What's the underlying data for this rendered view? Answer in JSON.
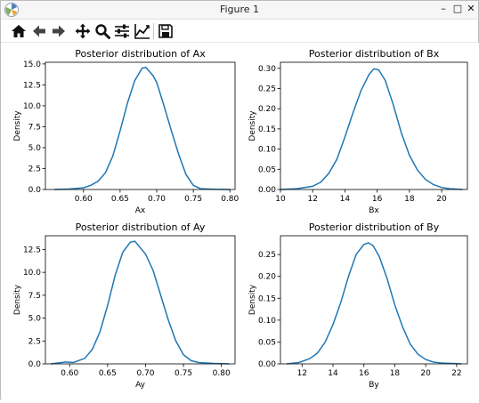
{
  "window": {
    "title": "Figure 1",
    "controls": {
      "minimize": "–",
      "maximize": "□",
      "close": "✕"
    }
  },
  "toolbar": {
    "buttons": [
      {
        "name": "home",
        "icon": "home-icon"
      },
      {
        "name": "back",
        "icon": "arrow-left-icon"
      },
      {
        "name": "forward",
        "icon": "arrow-right-icon"
      },
      {
        "name": "pan",
        "icon": "move-icon"
      },
      {
        "name": "zoom",
        "icon": "magnifier-icon"
      },
      {
        "name": "subplots",
        "icon": "sliders-icon"
      },
      {
        "name": "edit-axes",
        "icon": "line-chart-icon"
      },
      {
        "name": "save",
        "icon": "floppy-icon"
      }
    ]
  },
  "colors": {
    "line": "#1f77b4",
    "axes": "#000000"
  },
  "chart_data": [
    {
      "type": "line",
      "title": "Posterior distribution of Ax",
      "xlabel": "Ax",
      "ylabel": "Density",
      "xlim": [
        0.548,
        0.807
      ],
      "ylim": [
        0,
        15.2
      ],
      "xticks": [
        0.6,
        0.65,
        0.7,
        0.75,
        0.8
      ],
      "xtick_labels": [
        "0.60",
        "0.65",
        "0.70",
        "0.75",
        "0.80"
      ],
      "yticks": [
        0,
        2.5,
        5,
        7.5,
        10,
        12.5,
        15
      ],
      "ytick_labels": [
        "0.0",
        "2.5",
        "5.0",
        "7.5",
        "10.0",
        "12.5",
        "15.0"
      ],
      "series": [
        {
          "x": [
            0.56,
            0.58,
            0.6,
            0.61,
            0.62,
            0.63,
            0.64,
            0.65,
            0.66,
            0.67,
            0.68,
            0.685,
            0.69,
            0.695,
            0.7,
            0.71,
            0.72,
            0.73,
            0.74,
            0.75,
            0.76,
            0.78,
            0.8
          ],
          "y": [
            0.0,
            0.05,
            0.2,
            0.5,
            1.0,
            2.0,
            4.0,
            7.0,
            10.3,
            13.0,
            14.5,
            14.6,
            14.1,
            13.6,
            12.8,
            10.0,
            7.0,
            4.2,
            1.8,
            0.5,
            0.1,
            0.02,
            0.0
          ]
        }
      ]
    },
    {
      "type": "line",
      "title": "Posterior distribution of Bx",
      "xlabel": "Bx",
      "ylabel": "Density",
      "xlim": [
        10,
        21.6
      ],
      "ylim": [
        0,
        0.315
      ],
      "xticks": [
        10,
        12,
        14,
        16,
        18,
        20
      ],
      "xtick_labels": [
        "10",
        "12",
        "14",
        "16",
        "18",
        "20"
      ],
      "yticks": [
        0,
        0.05,
        0.1,
        0.15,
        0.2,
        0.25,
        0.3
      ],
      "ytick_labels": [
        "0.00",
        "0.05",
        "0.10",
        "0.15",
        "0.20",
        "0.25",
        "0.30"
      ],
      "series": [
        {
          "x": [
            10.0,
            11.0,
            12.0,
            12.5,
            13.0,
            13.5,
            14.0,
            14.5,
            15.0,
            15.5,
            15.8,
            16.1,
            16.5,
            17.0,
            17.5,
            18.0,
            18.5,
            19.0,
            19.5,
            20.0,
            20.5,
            21.3
          ],
          "y": [
            0.0,
            0.002,
            0.008,
            0.018,
            0.04,
            0.075,
            0.13,
            0.19,
            0.245,
            0.285,
            0.299,
            0.296,
            0.27,
            0.21,
            0.14,
            0.085,
            0.048,
            0.025,
            0.012,
            0.005,
            0.002,
            0.0
          ]
        }
      ]
    },
    {
      "type": "line",
      "title": "Posterior distribution of Ay",
      "xlabel": "Ay",
      "ylabel": "Density",
      "xlim": [
        0.568,
        0.818
      ],
      "ylim": [
        0,
        14.0
      ],
      "xticks": [
        0.6,
        0.65,
        0.7,
        0.75,
        0.8
      ],
      "xtick_labels": [
        "0.60",
        "0.65",
        "0.70",
        "0.75",
        "0.80"
      ],
      "yticks": [
        0,
        2.5,
        5,
        7.5,
        10,
        12.5
      ],
      "ytick_labels": [
        "0.0",
        "2.5",
        "5.0",
        "7.5",
        "10.0",
        "12.5"
      ],
      "series": [
        {
          "x": [
            0.575,
            0.585,
            0.595,
            0.605,
            0.62,
            0.63,
            0.64,
            0.65,
            0.66,
            0.67,
            0.68,
            0.686,
            0.69,
            0.7,
            0.71,
            0.72,
            0.73,
            0.74,
            0.75,
            0.76,
            0.77,
            0.79,
            0.81
          ],
          "y": [
            0.0,
            0.1,
            0.2,
            0.15,
            0.6,
            1.6,
            3.5,
            6.4,
            9.7,
            12.2,
            13.3,
            13.4,
            13.0,
            12.0,
            10.2,
            7.5,
            4.8,
            2.5,
            1.0,
            0.35,
            0.15,
            0.05,
            0.0
          ]
        }
      ]
    },
    {
      "type": "line",
      "title": "Posterior distribution of By",
      "xlabel": "By",
      "ylabel": "Density",
      "xlim": [
        10.6,
        22.7
      ],
      "ylim": [
        0,
        0.293
      ],
      "xticks": [
        12,
        14,
        16,
        18,
        20,
        22
      ],
      "xtick_labels": [
        "12",
        "14",
        "16",
        "18",
        "20",
        "22"
      ],
      "yticks": [
        0,
        0.05,
        0.1,
        0.15,
        0.2,
        0.25
      ],
      "ytick_labels": [
        "0.00",
        "0.05",
        "0.10",
        "0.15",
        "0.20",
        "0.25"
      ],
      "series": [
        {
          "x": [
            11.0,
            11.8,
            12.5,
            13.0,
            13.5,
            14.0,
            14.5,
            15.0,
            15.5,
            16.0,
            16.3,
            16.6,
            17.0,
            17.5,
            18.0,
            18.5,
            19.0,
            19.5,
            20.0,
            20.5,
            21.0,
            22.3
          ],
          "y": [
            0.0,
            0.003,
            0.012,
            0.025,
            0.05,
            0.09,
            0.14,
            0.2,
            0.25,
            0.273,
            0.277,
            0.27,
            0.245,
            0.195,
            0.135,
            0.085,
            0.045,
            0.022,
            0.01,
            0.004,
            0.002,
            0.0
          ]
        }
      ]
    }
  ]
}
